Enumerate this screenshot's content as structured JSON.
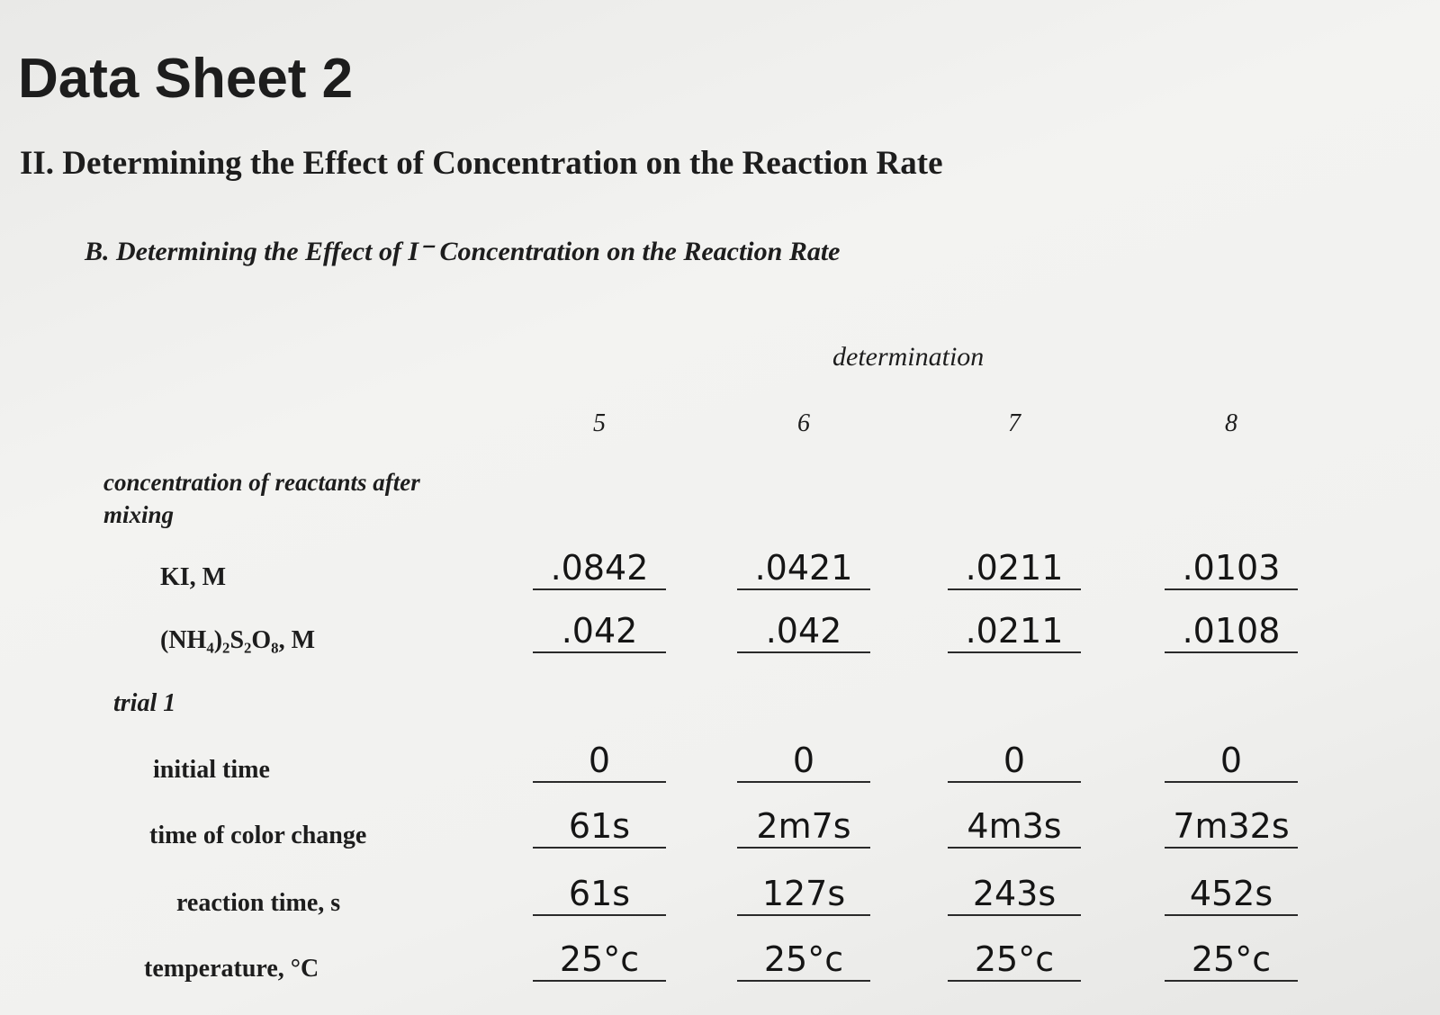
{
  "header": {
    "title": "Data Sheet 2",
    "section": "II. Determining the Effect of Concentration on the Reaction Rate",
    "subsection": "B. Determining the Effect of I⁻ Concentration on the Reaction Rate"
  },
  "table": {
    "group_header": "determination",
    "columns": [
      "5",
      "6",
      "7",
      "8"
    ],
    "section_label": "concentration of reactants after mixing",
    "trial_label": "trial 1",
    "rows": [
      {
        "label": "KI, M",
        "cells": [
          ".0842",
          ".0421",
          ".0211",
          ".0103"
        ]
      },
      {
        "label": "(NH₄)₂S₂O₈, M",
        "cells": [
          ".042",
          ".042",
          ".0211",
          ".0108"
        ]
      },
      {
        "label": "initial time",
        "cells": [
          "0",
          "0",
          "0",
          "0"
        ]
      },
      {
        "label": "time of color change",
        "cells": [
          "61s",
          "2m7s",
          "4m3s",
          "7m32s"
        ]
      },
      {
        "label": "reaction time, s",
        "cells": [
          "61s",
          "127s",
          "243s",
          "452s"
        ]
      },
      {
        "label": "temperature, °C",
        "cells": [
          "25°c",
          "25°c",
          "25°c",
          "25°c"
        ]
      }
    ]
  }
}
